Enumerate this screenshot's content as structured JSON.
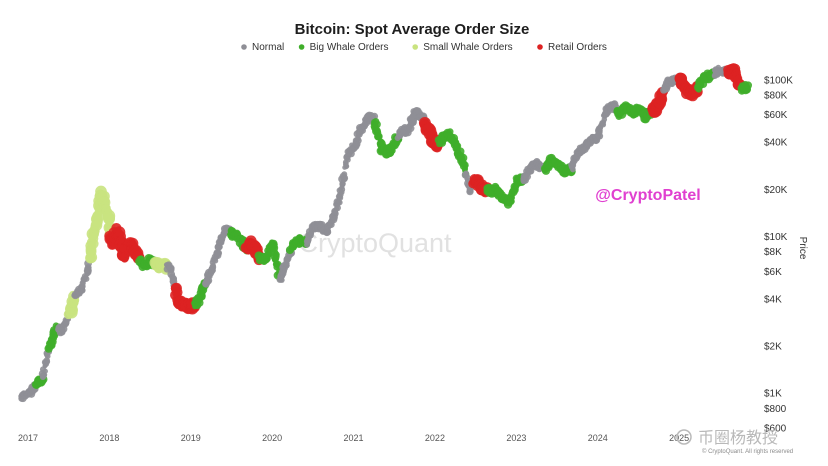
{
  "chart_data": {
    "type": "scatter",
    "title": "Bitcoin: Spot Average Order Size",
    "ylabel": "Price",
    "yscale": "log",
    "ylim": [
      600,
      130000
    ],
    "xlim": [
      2017.0,
      2025.92
    ],
    "legend_position": "top-center",
    "y_ticks": [
      {
        "value": 100000,
        "label": "$100K"
      },
      {
        "value": 80000,
        "label": "$80K"
      },
      {
        "value": 60000,
        "label": "$60K"
      },
      {
        "value": 40000,
        "label": "$40K"
      },
      {
        "value": 20000,
        "label": "$20K"
      },
      {
        "value": 10000,
        "label": "$10K"
      },
      {
        "value": 8000,
        "label": "$8K"
      },
      {
        "value": 6000,
        "label": "$6K"
      },
      {
        "value": 4000,
        "label": "$4K"
      },
      {
        "value": 2000,
        "label": "$2K"
      },
      {
        "value": 1000,
        "label": "$1K"
      },
      {
        "value": 800,
        "label": "$800"
      },
      {
        "value": 600,
        "label": "$600"
      }
    ],
    "x_ticks": [
      {
        "value": 2017,
        "label": "2017"
      },
      {
        "value": 2018,
        "label": "2018"
      },
      {
        "value": 2019,
        "label": "2019"
      },
      {
        "value": 2020,
        "label": "2020"
      },
      {
        "value": 2021,
        "label": "2021"
      },
      {
        "value": 2022,
        "label": "2022"
      },
      {
        "value": 2023,
        "label": "2023"
      },
      {
        "value": 2024,
        "label": "2024"
      },
      {
        "value": 2025,
        "label": "2025"
      }
    ],
    "categories": [
      "Normal",
      "Big Whale Orders",
      "Small Whale Orders",
      "Retail Orders"
    ],
    "colors": [
      "#8f8f96",
      "#3fae2a",
      "#c9e37f",
      "#dd2222"
    ],
    "price_series": [
      [
        2017.0,
        950
      ],
      [
        2017.08,
        1000
      ],
      [
        2017.17,
        1100
      ],
      [
        2017.25,
        1250
      ],
      [
        2017.33,
        1900
      ],
      [
        2017.42,
        2600
      ],
      [
        2017.5,
        2500
      ],
      [
        2017.58,
        3200
      ],
      [
        2017.67,
        4300
      ],
      [
        2017.75,
        4800
      ],
      [
        2017.83,
        7000
      ],
      [
        2017.92,
        13000
      ],
      [
        2017.97,
        19000
      ],
      [
        2018.05,
        14000
      ],
      [
        2018.1,
        9000
      ],
      [
        2018.17,
        11000
      ],
      [
        2018.25,
        7500
      ],
      [
        2018.33,
        9000
      ],
      [
        2018.42,
        7500
      ],
      [
        2018.5,
        6500
      ],
      [
        2018.58,
        7000
      ],
      [
        2018.67,
        6500
      ],
      [
        2018.75,
        6500
      ],
      [
        2018.83,
        6300
      ],
      [
        2018.92,
        3700
      ],
      [
        2019.0,
        3700
      ],
      [
        2019.08,
        3500
      ],
      [
        2019.17,
        3900
      ],
      [
        2019.25,
        5000
      ],
      [
        2019.33,
        6000
      ],
      [
        2019.42,
        8500
      ],
      [
        2019.5,
        11000
      ],
      [
        2019.58,
        10500
      ],
      [
        2019.67,
        10000
      ],
      [
        2019.75,
        8300
      ],
      [
        2019.83,
        9200
      ],
      [
        2019.92,
        7300
      ],
      [
        2020.0,
        7200
      ],
      [
        2020.08,
        9300
      ],
      [
        2020.17,
        5300
      ],
      [
        2020.25,
        6900
      ],
      [
        2020.33,
        8800
      ],
      [
        2020.42,
        9500
      ],
      [
        2020.5,
        9200
      ],
      [
        2020.58,
        11500
      ],
      [
        2020.67,
        11700
      ],
      [
        2020.75,
        10800
      ],
      [
        2020.83,
        13500
      ],
      [
        2020.92,
        19000
      ],
      [
        2021.0,
        33000
      ],
      [
        2021.08,
        38000
      ],
      [
        2021.17,
        48000
      ],
      [
        2021.25,
        58000
      ],
      [
        2021.33,
        56000
      ],
      [
        2021.42,
        36000
      ],
      [
        2021.5,
        34000
      ],
      [
        2021.58,
        40000
      ],
      [
        2021.67,
        47000
      ],
      [
        2021.75,
        48000
      ],
      [
        2021.83,
        62000
      ],
      [
        2021.92,
        57000
      ],
      [
        2022.0,
        47000
      ],
      [
        2022.08,
        38000
      ],
      [
        2022.17,
        42000
      ],
      [
        2022.25,
        45000
      ],
      [
        2022.33,
        38000
      ],
      [
        2022.42,
        30000
      ],
      [
        2022.5,
        20000
      ],
      [
        2022.58,
        23000
      ],
      [
        2022.67,
        20000
      ],
      [
        2022.75,
        19500
      ],
      [
        2022.83,
        20000
      ],
      [
        2022.92,
        17000
      ],
      [
        2023.0,
        16600
      ],
      [
        2023.08,
        23000
      ],
      [
        2023.17,
        23000
      ],
      [
        2023.25,
        28000
      ],
      [
        2023.33,
        29000
      ],
      [
        2023.42,
        27000
      ],
      [
        2023.5,
        30500
      ],
      [
        2023.58,
        29000
      ],
      [
        2023.67,
        26000
      ],
      [
        2023.75,
        27000
      ],
      [
        2023.83,
        34500
      ],
      [
        2023.92,
        37500
      ],
      [
        2024.0,
        42000
      ],
      [
        2024.08,
        43000
      ],
      [
        2024.17,
        62000
      ],
      [
        2024.25,
        70000
      ],
      [
        2024.33,
        60000
      ],
      [
        2024.42,
        67000
      ],
      [
        2024.5,
        62000
      ],
      [
        2024.58,
        66000
      ],
      [
        2024.67,
        58000
      ],
      [
        2024.75,
        63000
      ],
      [
        2024.83,
        70000
      ],
      [
        2024.92,
        96000
      ],
      [
        2025.0,
        97000
      ],
      [
        2025.08,
        102000
      ],
      [
        2025.17,
        85000
      ],
      [
        2025.25,
        82000
      ],
      [
        2025.33,
        95000
      ],
      [
        2025.42,
        105000
      ],
      [
        2025.5,
        108000
      ],
      [
        2025.58,
        117000
      ],
      [
        2025.67,
        110000
      ],
      [
        2025.75,
        115000
      ],
      [
        2025.83,
        90000
      ],
      [
        2025.87,
        87000
      ],
      [
        2025.92,
        90000
      ]
    ],
    "classification_segments": [
      {
        "start": 2017.0,
        "end": 2017.17,
        "category": "Normal"
      },
      {
        "start": 2017.17,
        "end": 2017.25,
        "category": "Big Whale Orders"
      },
      {
        "start": 2017.25,
        "end": 2017.33,
        "category": "Normal"
      },
      {
        "start": 2017.33,
        "end": 2017.45,
        "category": "Big Whale Orders"
      },
      {
        "start": 2017.45,
        "end": 2017.58,
        "category": "Normal"
      },
      {
        "start": 2017.58,
        "end": 2017.65,
        "category": "Small Whale Orders"
      },
      {
        "start": 2017.65,
        "end": 2017.83,
        "category": "Normal"
      },
      {
        "start": 2017.83,
        "end": 2018.08,
        "category": "Small Whale Orders"
      },
      {
        "start": 2018.08,
        "end": 2018.45,
        "category": "Retail Orders"
      },
      {
        "start": 2018.45,
        "end": 2018.62,
        "category": "Big Whale Orders"
      },
      {
        "start": 2018.62,
        "end": 2018.78,
        "category": "Small Whale Orders"
      },
      {
        "start": 2018.78,
        "end": 2018.88,
        "category": "Normal"
      },
      {
        "start": 2018.88,
        "end": 2019.12,
        "category": "Retail Orders"
      },
      {
        "start": 2019.12,
        "end": 2019.25,
        "category": "Big Whale Orders"
      },
      {
        "start": 2019.25,
        "end": 2019.55,
        "category": "Normal"
      },
      {
        "start": 2019.55,
        "end": 2019.75,
        "category": "Big Whale Orders"
      },
      {
        "start": 2019.75,
        "end": 2019.92,
        "category": "Retail Orders"
      },
      {
        "start": 2019.92,
        "end": 2020.17,
        "category": "Big Whale Orders"
      },
      {
        "start": 2020.17,
        "end": 2020.3,
        "category": "Normal"
      },
      {
        "start": 2020.3,
        "end": 2020.5,
        "category": "Big Whale Orders"
      },
      {
        "start": 2020.5,
        "end": 2020.83,
        "category": "Normal"
      },
      {
        "start": 2020.83,
        "end": 2021.0,
        "category": "Normal"
      },
      {
        "start": 2021.0,
        "end": 2021.33,
        "category": "Normal"
      },
      {
        "start": 2021.33,
        "end": 2021.62,
        "category": "Big Whale Orders"
      },
      {
        "start": 2021.62,
        "end": 2021.95,
        "category": "Normal"
      },
      {
        "start": 2021.95,
        "end": 2022.12,
        "category": "Retail Orders"
      },
      {
        "start": 2022.12,
        "end": 2022.45,
        "category": "Big Whale Orders"
      },
      {
        "start": 2022.45,
        "end": 2022.55,
        "category": "Normal"
      },
      {
        "start": 2022.55,
        "end": 2022.72,
        "category": "Retail Orders"
      },
      {
        "start": 2022.72,
        "end": 2023.17,
        "category": "Big Whale Orders"
      },
      {
        "start": 2023.17,
        "end": 2023.42,
        "category": "Normal"
      },
      {
        "start": 2023.42,
        "end": 2023.75,
        "category": "Big Whale Orders"
      },
      {
        "start": 2023.75,
        "end": 2024.3,
        "category": "Normal"
      },
      {
        "start": 2024.3,
        "end": 2024.75,
        "category": "Big Whale Orders"
      },
      {
        "start": 2024.75,
        "end": 2024.88,
        "category": "Retail Orders"
      },
      {
        "start": 2024.88,
        "end": 2025.08,
        "category": "Normal"
      },
      {
        "start": 2025.08,
        "end": 2025.3,
        "category": "Retail Orders"
      },
      {
        "start": 2025.3,
        "end": 2025.5,
        "category": "Big Whale Orders"
      },
      {
        "start": 2025.5,
        "end": 2025.68,
        "category": "Normal"
      },
      {
        "start": 2025.68,
        "end": 2025.83,
        "category": "Retail Orders"
      },
      {
        "start": 2025.83,
        "end": 2025.92,
        "category": "Big Whale Orders"
      }
    ]
  },
  "watermarks": {
    "platform": "CryptoQuant",
    "author": "@CryptoPatel",
    "credit": "© CryptoQuant. All rights reserved",
    "brand": "币圈杨教授"
  }
}
